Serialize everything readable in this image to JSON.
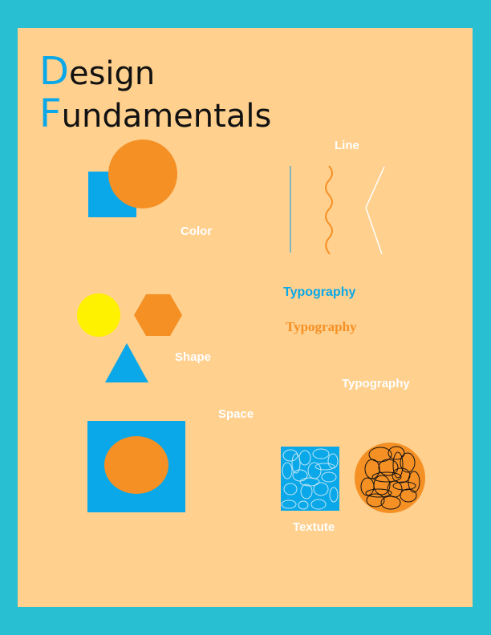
{
  "title": {
    "line1_initial": "D",
    "line1_rest": "esign",
    "line2_initial": "F",
    "line2_rest": "undamentals"
  },
  "labels": {
    "color": "Color",
    "line": "Line",
    "shape": "Shape",
    "space": "Space",
    "texture": "Textute"
  },
  "typography": {
    "sample_blue": "Typography",
    "sample_orange": "Typography",
    "sample_white": "Typography"
  },
  "colors": {
    "background": "#29bfd2",
    "poster": "#ffd08e",
    "blue": "#0aa8e8",
    "orange": "#f59025",
    "yellow": "#fff200",
    "white": "#ffffff",
    "ink": "#111111"
  },
  "icons": {
    "color": "square-circle-icon",
    "line": "line-styles-icon",
    "shape": "shapes-icon",
    "space": "space-icon",
    "texture": "texture-icon"
  }
}
